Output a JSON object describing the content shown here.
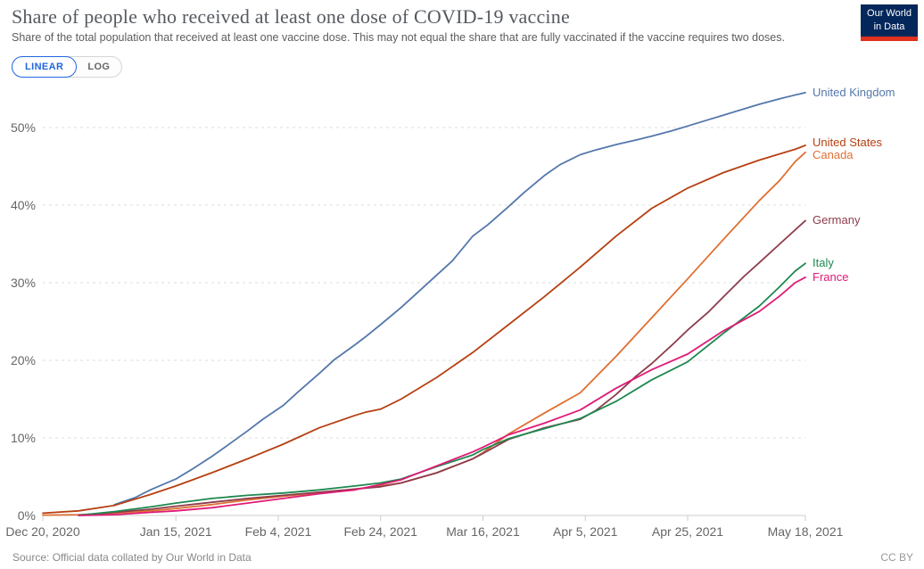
{
  "header": {
    "title": "Share of people who received at least one dose of COVID-19 vaccine",
    "subtitle": "Share of the total population that received at least one vaccine dose. This may not equal the share that are fully vaccinated if the vaccine requires two doses.",
    "logo": {
      "line1": "Our World",
      "line2": "in Data",
      "bg_color": "#04275b",
      "accent_color": "#e0301e"
    }
  },
  "controls": {
    "linear_label": "LINEAR",
    "log_label": "LOG",
    "active": "LINEAR",
    "active_color": "#2266dd"
  },
  "footer": {
    "source": "Source: Official data collated by Our World in Data",
    "license": "CC BY"
  },
  "chart_data": {
    "type": "line",
    "title": "Share of people who received at least one dose of COVID-19 vaccine",
    "x_axis": {
      "unit": "date",
      "tick_labels": [
        "Dec 20, 2020",
        "Jan 15, 2021",
        "Feb 4, 2021",
        "Feb 24, 2021",
        "Mar 16, 2021",
        "Apr 5, 2021",
        "Apr 25, 2021",
        "May 18, 2021"
      ],
      "tick_days": [
        0,
        26,
        46,
        66,
        86,
        106,
        126,
        149
      ],
      "range_days": [
        0,
        149
      ]
    },
    "y_axis": {
      "tick_labels": [
        "0%",
        "10%",
        "20%",
        "30%",
        "40%",
        "50%"
      ],
      "tick_values": [
        0,
        10,
        20,
        30,
        40,
        50
      ],
      "range": [
        0,
        56
      ],
      "grid": "dashed"
    },
    "legend_position": "right-of-line-ends",
    "series": [
      {
        "name": "United Kingdom",
        "color": "#5477ab",
        "end_value": 54.5,
        "points": [
          [
            14,
            1.4
          ],
          [
            18,
            2.3
          ],
          [
            21,
            3.3
          ],
          [
            26,
            4.7
          ],
          [
            29,
            5.9
          ],
          [
            33,
            7.6
          ],
          [
            36,
            9.0
          ],
          [
            40,
            10.9
          ],
          [
            43,
            12.4
          ],
          [
            47,
            14.2
          ],
          [
            50,
            16.0
          ],
          [
            54,
            18.3
          ],
          [
            57,
            20.1
          ],
          [
            61,
            22.0
          ],
          [
            63,
            23.0
          ],
          [
            66,
            24.6
          ],
          [
            70,
            26.8
          ],
          [
            73,
            28.6
          ],
          [
            77,
            31.0
          ],
          [
            80,
            32.8
          ],
          [
            84,
            36.0
          ],
          [
            87,
            37.5
          ],
          [
            91,
            39.8
          ],
          [
            94,
            41.6
          ],
          [
            98,
            43.8
          ],
          [
            101,
            45.2
          ],
          [
            105,
            46.5
          ],
          [
            108,
            47.1
          ],
          [
            112,
            47.8
          ],
          [
            116,
            48.4
          ],
          [
            119,
            48.9
          ],
          [
            123,
            49.6
          ],
          [
            126,
            50.2
          ],
          [
            130,
            51.0
          ],
          [
            133,
            51.6
          ],
          [
            137,
            52.4
          ],
          [
            140,
            53.0
          ],
          [
            144,
            53.7
          ],
          [
            147,
            54.2
          ],
          [
            149,
            54.5
          ]
        ]
      },
      {
        "name": "United States",
        "color": "#b64012",
        "end_value": 47.7,
        "points": [
          [
            0,
            0.3
          ],
          [
            7,
            0.6
          ],
          [
            14,
            1.3
          ],
          [
            21,
            2.7
          ],
          [
            26,
            3.8
          ],
          [
            33,
            5.5
          ],
          [
            40,
            7.3
          ],
          [
            47,
            9.2
          ],
          [
            54,
            11.3
          ],
          [
            61,
            12.9
          ],
          [
            63,
            13.3
          ],
          [
            66,
            13.7
          ],
          [
            70,
            15.0
          ],
          [
            77,
            17.8
          ],
          [
            84,
            21.0
          ],
          [
            91,
            24.6
          ],
          [
            98,
            28.2
          ],
          [
            105,
            32.0
          ],
          [
            112,
            36.0
          ],
          [
            119,
            39.6
          ],
          [
            126,
            42.2
          ],
          [
            133,
            44.2
          ],
          [
            140,
            45.8
          ],
          [
            147,
            47.2
          ],
          [
            149,
            47.7
          ]
        ]
      },
      {
        "name": "Canada",
        "color": "#df6f32",
        "end_value": 46.8,
        "points": [
          [
            0,
            0.05
          ],
          [
            7,
            0.1
          ],
          [
            14,
            0.3
          ],
          [
            21,
            0.6
          ],
          [
            26,
            0.9
          ],
          [
            33,
            1.4
          ],
          [
            40,
            2.0
          ],
          [
            47,
            2.5
          ],
          [
            54,
            2.9
          ],
          [
            61,
            3.4
          ],
          [
            66,
            3.8
          ],
          [
            70,
            4.2
          ],
          [
            77,
            5.5
          ],
          [
            84,
            7.3
          ],
          [
            86,
            8.1
          ],
          [
            91,
            10.5
          ],
          [
            98,
            13.2
          ],
          [
            105,
            15.8
          ],
          [
            112,
            20.5
          ],
          [
            119,
            25.5
          ],
          [
            126,
            30.5
          ],
          [
            133,
            35.6
          ],
          [
            140,
            40.6
          ],
          [
            144,
            43.2
          ],
          [
            147,
            45.6
          ],
          [
            149,
            46.8
          ]
        ]
      },
      {
        "name": "Germany",
        "color": "#8d3c4c",
        "end_value": 38.0,
        "points": [
          [
            7,
            0.05
          ],
          [
            14,
            0.4
          ],
          [
            21,
            0.8
          ],
          [
            26,
            1.2
          ],
          [
            33,
            1.7
          ],
          [
            40,
            2.2
          ],
          [
            47,
            2.6
          ],
          [
            54,
            3.0
          ],
          [
            61,
            3.4
          ],
          [
            66,
            3.7
          ],
          [
            70,
            4.2
          ],
          [
            77,
            5.5
          ],
          [
            84,
            7.3
          ],
          [
            86,
            8.0
          ],
          [
            91,
            9.8
          ],
          [
            98,
            11.3
          ],
          [
            105,
            12.4
          ],
          [
            108,
            13.5
          ],
          [
            112,
            15.6
          ],
          [
            116,
            18.0
          ],
          [
            119,
            19.6
          ],
          [
            123,
            22.0
          ],
          [
            126,
            23.9
          ],
          [
            130,
            26.2
          ],
          [
            133,
            28.2
          ],
          [
            137,
            30.8
          ],
          [
            140,
            32.6
          ],
          [
            144,
            35.0
          ],
          [
            147,
            36.8
          ],
          [
            149,
            38.0
          ]
        ]
      },
      {
        "name": "Italy",
        "color": "#1d8850",
        "end_value": 32.5,
        "points": [
          [
            7,
            0.02
          ],
          [
            14,
            0.5
          ],
          [
            21,
            1.1
          ],
          [
            26,
            1.6
          ],
          [
            33,
            2.2
          ],
          [
            40,
            2.6
          ],
          [
            47,
            2.9
          ],
          [
            54,
            3.3
          ],
          [
            61,
            3.8
          ],
          [
            66,
            4.2
          ],
          [
            70,
            4.7
          ],
          [
            77,
            6.3
          ],
          [
            84,
            7.8
          ],
          [
            86,
            8.5
          ],
          [
            91,
            9.9
          ],
          [
            98,
            11.2
          ],
          [
            105,
            12.5
          ],
          [
            112,
            14.7
          ],
          [
            119,
            17.5
          ],
          [
            126,
            19.8
          ],
          [
            133,
            23.5
          ],
          [
            140,
            27.0
          ],
          [
            144,
            29.5
          ],
          [
            147,
            31.5
          ],
          [
            149,
            32.5
          ]
        ]
      },
      {
        "name": "France",
        "color": "#e01a76",
        "end_value": 30.7,
        "points": [
          [
            7,
            0.0
          ],
          [
            14,
            0.1
          ],
          [
            21,
            0.4
          ],
          [
            26,
            0.6
          ],
          [
            33,
            1.0
          ],
          [
            40,
            1.6
          ],
          [
            47,
            2.2
          ],
          [
            54,
            2.8
          ],
          [
            61,
            3.3
          ],
          [
            66,
            4.0
          ],
          [
            70,
            4.6
          ],
          [
            77,
            6.4
          ],
          [
            84,
            8.2
          ],
          [
            86,
            8.8
          ],
          [
            91,
            10.4
          ],
          [
            98,
            11.9
          ],
          [
            105,
            13.6
          ],
          [
            112,
            16.4
          ],
          [
            119,
            18.8
          ],
          [
            126,
            20.8
          ],
          [
            133,
            23.8
          ],
          [
            140,
            26.3
          ],
          [
            144,
            28.3
          ],
          [
            147,
            30.0
          ],
          [
            149,
            30.7
          ]
        ]
      }
    ]
  }
}
